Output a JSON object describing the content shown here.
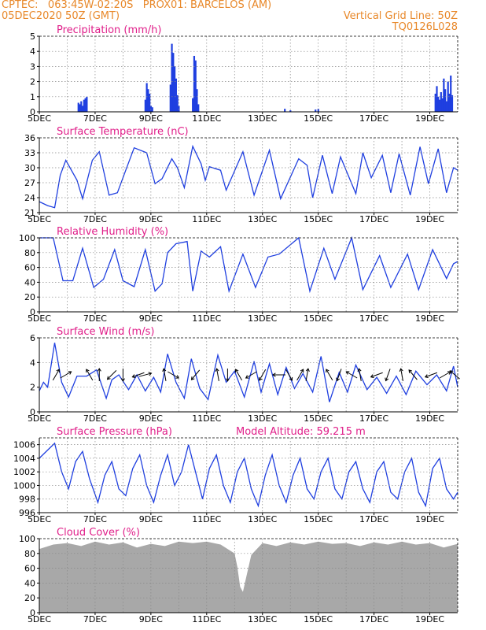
{
  "header": {
    "line1_left": "CPTEC:   063:45W-02:20S   PROX01: BARCELOS (AM)",
    "line2_left": "05DEC2020 50Z (GMT)",
    "line2_right": "Vertical Grid Line: 50Z",
    "line3_right": "TQ0126L028"
  },
  "colors": {
    "header": "#e8882a",
    "title": "#e0208a",
    "line": "#1f3fe0",
    "cloud": "#a8a8a8"
  },
  "x_axis": {
    "range": [
      5,
      20
    ],
    "tick_labels": [
      "5DEC",
      "7DEC",
      "9DEC",
      "11DEC",
      "13DEC",
      "15DEC",
      "17DEC",
      "19DEC"
    ],
    "tick_days": [
      5,
      7,
      9,
      11,
      13,
      15,
      17,
      19
    ]
  },
  "chart_data": [
    {
      "id": "precip",
      "type": "bar",
      "title": "Precipitation (mm/h)",
      "ylim": [
        0,
        5
      ],
      "yticks": [
        0,
        1,
        2,
        3,
        4,
        5
      ],
      "x": [
        6.4,
        6.45,
        6.5,
        6.55,
        6.6,
        6.65,
        6.7,
        8.8,
        8.85,
        8.9,
        8.95,
        9.0,
        9.05,
        9.7,
        9.75,
        9.8,
        9.85,
        9.9,
        9.95,
        10.0,
        10.5,
        10.55,
        10.6,
        10.65,
        10.7,
        13.8,
        14.0,
        14.9,
        15.0,
        19.2,
        19.25,
        19.3,
        19.35,
        19.4,
        19.45,
        19.5,
        19.55,
        19.6,
        19.65,
        19.7,
        19.75,
        19.8
      ],
      "values": [
        0.6,
        0.5,
        0.7,
        0.4,
        0.8,
        0.9,
        1.0,
        0.8,
        1.9,
        1.5,
        1.2,
        0.4,
        0.3,
        1.8,
        4.5,
        3.9,
        3.0,
        2.2,
        1.1,
        0.4,
        0.9,
        3.7,
        3.4,
        1.5,
        0.5,
        0.2,
        0.1,
        0.15,
        0.2,
        1.2,
        1.7,
        1.0,
        0.8,
        1.3,
        0.9,
        2.2,
        1.5,
        0.7,
        2.0,
        1.2,
        2.4,
        1.1
      ]
    },
    {
      "id": "temp",
      "type": "line",
      "title": "Surface Temperature (nC)",
      "ylim": [
        21,
        36
      ],
      "yticks": [
        21,
        24,
        27,
        30,
        33,
        36
      ],
      "x": [
        5.0,
        5.3,
        5.55,
        5.75,
        5.95,
        6.35,
        6.55,
        6.9,
        7.15,
        7.5,
        7.8,
        8.1,
        8.4,
        8.85,
        9.15,
        9.4,
        9.75,
        9.95,
        10.2,
        10.5,
        10.8,
        10.95,
        11.1,
        11.5,
        11.7,
        12.3,
        12.7,
        13.25,
        13.65,
        14.3,
        14.6,
        14.8,
        15.15,
        15.5,
        15.8,
        16.35,
        16.6,
        16.9,
        17.3,
        17.6,
        17.9,
        18.3,
        18.65,
        18.95,
        19.3,
        19.6,
        19.85,
        20.0
      ],
      "values": [
        23.2,
        22.4,
        22.0,
        28.5,
        31.5,
        27.5,
        23.8,
        31.5,
        33.2,
        24.5,
        25.0,
        29.5,
        34.0,
        33.0,
        26.8,
        27.8,
        31.8,
        30.0,
        26.0,
        34.3,
        30.8,
        27.5,
        30.2,
        29.5,
        25.5,
        33.2,
        24.5,
        33.5,
        23.8,
        31.8,
        30.5,
        24.0,
        32.5,
        24.8,
        32.2,
        24.8,
        33.0,
        28.0,
        32.5,
        25.0,
        32.8,
        24.5,
        34.2,
        26.8,
        33.8,
        25.0,
        30.0,
        29.5
      ]
    },
    {
      "id": "rh",
      "type": "line",
      "title": "Relative Humidity (%)",
      "ylim": [
        0,
        100
      ],
      "yticks": [
        0,
        20,
        40,
        60,
        80,
        100
      ],
      "x": [
        5.0,
        5.5,
        5.85,
        6.2,
        6.55,
        6.95,
        7.3,
        7.7,
        8.0,
        8.4,
        8.8,
        9.15,
        9.4,
        9.6,
        9.9,
        10.3,
        10.5,
        10.8,
        11.1,
        11.5,
        11.8,
        12.3,
        12.75,
        13.2,
        13.6,
        14.3,
        14.7,
        15.2,
        15.6,
        16.2,
        16.6,
        17.2,
        17.6,
        18.2,
        18.6,
        19.1,
        19.6,
        19.85,
        20.0
      ],
      "values": [
        100,
        100,
        42,
        42,
        86,
        33,
        44,
        84,
        42,
        34,
        84,
        28,
        38,
        80,
        92,
        95,
        28,
        82,
        74,
        88,
        28,
        78,
        33,
        74,
        78,
        100,
        28,
        86,
        44,
        100,
        30,
        76,
        33,
        78,
        30,
        84,
        45,
        65,
        68
      ]
    },
    {
      "id": "wind",
      "type": "line",
      "title": "Surface Wind (m/s)",
      "ylim": [
        0,
        6
      ],
      "yticks": [
        0,
        2,
        4,
        6
      ],
      "x": [
        5.0,
        5.15,
        5.3,
        5.55,
        5.8,
        6.05,
        6.35,
        6.7,
        7.05,
        7.4,
        7.6,
        7.85,
        8.2,
        8.5,
        8.8,
        9.1,
        9.35,
        9.6,
        9.9,
        10.2,
        10.45,
        10.75,
        11.05,
        11.4,
        11.7,
        12.0,
        12.35,
        12.7,
        12.95,
        13.25,
        13.55,
        13.85,
        14.15,
        14.45,
        14.8,
        15.1,
        15.4,
        15.75,
        16.05,
        16.35,
        16.75,
        17.1,
        17.45,
        17.8,
        18.15,
        18.5,
        18.9,
        19.25,
        19.6,
        19.85,
        20.0
      ],
      "values": [
        1.7,
        2.4,
        2.0,
        5.6,
        2.4,
        1.2,
        2.9,
        2.9,
        3.4,
        1.1,
        2.6,
        3.0,
        1.8,
        3.0,
        1.7,
        2.8,
        1.6,
        4.7,
        2.4,
        1.1,
        4.3,
        1.9,
        1.0,
        4.6,
        2.4,
        3.3,
        1.2,
        4.1,
        1.6,
        3.9,
        1.4,
        3.6,
        1.9,
        3.1,
        1.6,
        4.5,
        0.8,
        3.2,
        1.6,
        3.8,
        1.8,
        2.8,
        1.5,
        2.9,
        1.4,
        3.3,
        2.2,
        3.0,
        1.7,
        3.7,
        2.0
      ],
      "arrows": [
        {
          "day": 5.6,
          "dir": 60
        },
        {
          "day": 5.95,
          "dir": 30
        },
        {
          "day": 6.8,
          "dir": 120
        },
        {
          "day": 7.15,
          "dir": 90
        },
        {
          "day": 7.6,
          "dir": 225
        },
        {
          "day": 8.0,
          "dir": 270
        },
        {
          "day": 8.55,
          "dir": 200
        },
        {
          "day": 8.8,
          "dir": 15
        },
        {
          "day": 9.5,
          "dir": 100
        },
        {
          "day": 9.8,
          "dir": 330
        },
        {
          "day": 10.6,
          "dir": 230
        },
        {
          "day": 11.4,
          "dir": 100
        },
        {
          "day": 11.75,
          "dir": 270
        },
        {
          "day": 12.15,
          "dir": 120
        },
        {
          "day": 12.6,
          "dir": 210
        },
        {
          "day": 13.0,
          "dir": 240
        },
        {
          "day": 13.6,
          "dir": 180
        },
        {
          "day": 13.95,
          "dir": 300
        },
        {
          "day": 14.35,
          "dir": 60
        },
        {
          "day": 14.6,
          "dir": 80
        },
        {
          "day": 15.4,
          "dir": 120
        },
        {
          "day": 15.75,
          "dir": 250
        },
        {
          "day": 16.2,
          "dir": 150
        },
        {
          "day": 16.5,
          "dir": 100
        },
        {
          "day": 17.1,
          "dir": 200
        },
        {
          "day": 17.5,
          "dir": 250
        },
        {
          "day": 18.0,
          "dir": 100
        },
        {
          "day": 18.4,
          "dir": 130
        },
        {
          "day": 19.05,
          "dir": 200
        },
        {
          "day": 19.55,
          "dir": 30
        },
        {
          "day": 19.9,
          "dir": 140
        }
      ]
    },
    {
      "id": "pres",
      "type": "line",
      "title": "Surface Pressure (hPa)",
      "annotation": "Model Altitude: 59.215 m",
      "ylim": [
        996,
        1007
      ],
      "yticks": [
        996,
        998,
        1000,
        1002,
        1004,
        1006
      ],
      "x": [
        5.0,
        5.3,
        5.55,
        5.8,
        6.05,
        6.3,
        6.55,
        6.8,
        7.1,
        7.35,
        7.6,
        7.85,
        8.1,
        8.35,
        8.6,
        8.85,
        9.1,
        9.35,
        9.6,
        9.85,
        10.1,
        10.35,
        10.6,
        10.85,
        11.1,
        11.35,
        11.6,
        11.85,
        12.1,
        12.35,
        12.6,
        12.85,
        13.1,
        13.35,
        13.6,
        13.85,
        14.1,
        14.35,
        14.6,
        14.85,
        15.1,
        15.35,
        15.6,
        15.85,
        16.1,
        16.35,
        16.6,
        16.85,
        17.1,
        17.35,
        17.6,
        17.85,
        18.1,
        18.35,
        18.6,
        18.85,
        19.1,
        19.35,
        19.6,
        19.85,
        20.0
      ],
      "values": [
        1004.0,
        1005.2,
        1006.2,
        1002.0,
        999.5,
        1003.5,
        1005.0,
        1001.0,
        997.5,
        1001.5,
        1003.5,
        999.5,
        998.5,
        1002.5,
        1004.5,
        1000.0,
        997.5,
        1001.5,
        1004.5,
        1000.0,
        1002.0,
        1006.0,
        1002.0,
        998.0,
        1002.5,
        1004.5,
        1000.0,
        997.5,
        1002.0,
        1004.0,
        999.5,
        997.0,
        1001.5,
        1004.5,
        1000.0,
        997.5,
        1001.5,
        1004.0,
        999.5,
        998.0,
        1002.0,
        1004.0,
        999.5,
        998.0,
        1002.0,
        1003.5,
        999.5,
        997.5,
        1002.0,
        1003.5,
        999.0,
        998.0,
        1002.0,
        1004.0,
        999.0,
        997.0,
        1002.5,
        1004.0,
        999.5,
        998.0,
        999.0
      ]
    },
    {
      "id": "cloud",
      "type": "area",
      "title": "Cloud Cover (%)",
      "ylim": [
        0,
        100
      ],
      "yticks": [
        0,
        20,
        40,
        60,
        80,
        100
      ],
      "x": [
        5.0,
        5.5,
        6.0,
        6.5,
        7.0,
        7.5,
        8.0,
        8.5,
        9.0,
        9.5,
        10.0,
        10.5,
        11.0,
        11.5,
        12.0,
        12.1,
        12.2,
        12.3,
        12.4,
        12.6,
        13.0,
        13.5,
        14.0,
        14.5,
        15.0,
        15.5,
        16.0,
        16.5,
        17.0,
        17.5,
        18.0,
        18.5,
        19.0,
        19.5,
        20.0
      ],
      "values": [
        86,
        92,
        94,
        90,
        96,
        92,
        95,
        88,
        93,
        90,
        96,
        94,
        96,
        92,
        80,
        62,
        35,
        28,
        45,
        78,
        94,
        90,
        95,
        92,
        96,
        93,
        94,
        90,
        95,
        92,
        96,
        92,
        94,
        88,
        93
      ]
    }
  ]
}
